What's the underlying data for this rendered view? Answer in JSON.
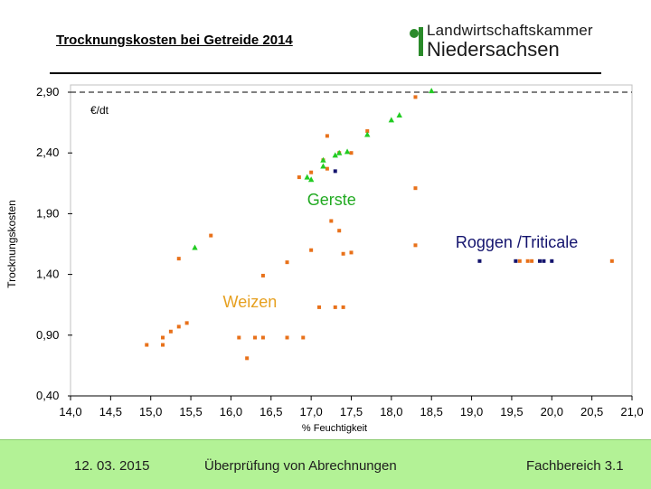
{
  "header": {
    "title": "Trocknungskosten bei Getreide 2014",
    "logo_line1": "Landwirtschaftskammer",
    "logo_line2": "Niedersachsen"
  },
  "footer": {
    "date": "12. 03. 2015",
    "center": "Überprüfung von Abrechnungen",
    "right": "Fachbereich 3.1"
  },
  "colors": {
    "weizen": "#e8711a",
    "gerste": "#22cc22",
    "roggen": "#14146e",
    "weizen_label": "#e6a020",
    "gerste_label": "#22aa22",
    "roggen_label": "#14146e",
    "footer_bg": "#b3f296"
  },
  "chart_data": {
    "type": "scatter",
    "title": "",
    "xlabel": "% Feuchtigkeit",
    "ylabel": "Trocknungskosten",
    "unit_label": "€/dt",
    "xlim": [
      14.0,
      21.0
    ],
    "ylim": [
      0.4,
      2.9
    ],
    "xticks": [
      "14,0",
      "14,5",
      "15,0",
      "15,5",
      "16,0",
      "16,5",
      "17,0",
      "17,5",
      "18,0",
      "18,5",
      "19,0",
      "19,5",
      "20,0",
      "20,5",
      "21,0"
    ],
    "yticks": [
      "0,40",
      "0,90",
      "1,40",
      "1,90",
      "2,40",
      "2,90"
    ],
    "reference_line": 2.9,
    "annotations": [
      {
        "text": "Weizen",
        "x": 15.9,
        "y": 1.13,
        "series": "weizen"
      },
      {
        "text": "Gerste",
        "x": 16.95,
        "y": 1.97,
        "series": "gerste"
      },
      {
        "text": "Roggen /Triticale",
        "x": 18.8,
        "y": 1.62,
        "series": "roggen"
      }
    ],
    "series": [
      {
        "key": "weizen",
        "marker": "square",
        "points": [
          [
            14.95,
            0.82
          ],
          [
            15.15,
            0.82
          ],
          [
            15.15,
            0.88
          ],
          [
            15.25,
            0.93
          ],
          [
            15.35,
            0.97
          ],
          [
            15.45,
            1.0
          ],
          [
            15.35,
            1.53
          ],
          [
            15.75,
            1.72
          ],
          [
            16.1,
            0.88
          ],
          [
            16.3,
            0.88
          ],
          [
            16.4,
            0.88
          ],
          [
            16.2,
            0.71
          ],
          [
            16.4,
            1.39
          ],
          [
            16.7,
            0.88
          ],
          [
            16.9,
            0.88
          ],
          [
            16.7,
            1.5
          ],
          [
            16.85,
            2.2
          ],
          [
            17.0,
            2.24
          ],
          [
            17.0,
            1.6
          ],
          [
            17.15,
            2.34
          ],
          [
            17.2,
            2.27
          ],
          [
            17.25,
            1.84
          ],
          [
            17.35,
            1.76
          ],
          [
            17.4,
            1.57
          ],
          [
            17.5,
            1.58
          ],
          [
            17.35,
            2.4
          ],
          [
            17.5,
            2.4
          ],
          [
            17.2,
            2.54
          ],
          [
            17.7,
            2.58
          ],
          [
            18.3,
            2.11
          ],
          [
            18.3,
            1.64
          ],
          [
            18.3,
            2.86
          ],
          [
            17.1,
            1.13
          ],
          [
            17.3,
            1.13
          ],
          [
            17.4,
            1.13
          ],
          [
            19.6,
            1.51
          ],
          [
            19.7,
            1.51
          ],
          [
            19.75,
            1.51
          ],
          [
            20.75,
            1.51
          ]
        ]
      },
      {
        "key": "gerste",
        "marker": "triangle",
        "points": [
          [
            15.55,
            1.62
          ],
          [
            16.95,
            2.2
          ],
          [
            17.0,
            2.18
          ],
          [
            17.15,
            2.34
          ],
          [
            17.15,
            2.29
          ],
          [
            17.3,
            2.38
          ],
          [
            17.35,
            2.4
          ],
          [
            17.45,
            2.41
          ],
          [
            17.7,
            2.55
          ],
          [
            18.0,
            2.67
          ],
          [
            18.1,
            2.71
          ],
          [
            18.5,
            2.91
          ]
        ]
      },
      {
        "key": "roggen",
        "marker": "square",
        "points": [
          [
            17.3,
            2.25
          ],
          [
            19.1,
            1.51
          ],
          [
            19.55,
            1.51
          ],
          [
            19.9,
            1.51
          ],
          [
            19.85,
            1.51
          ],
          [
            20.0,
            1.51
          ]
        ]
      }
    ]
  }
}
